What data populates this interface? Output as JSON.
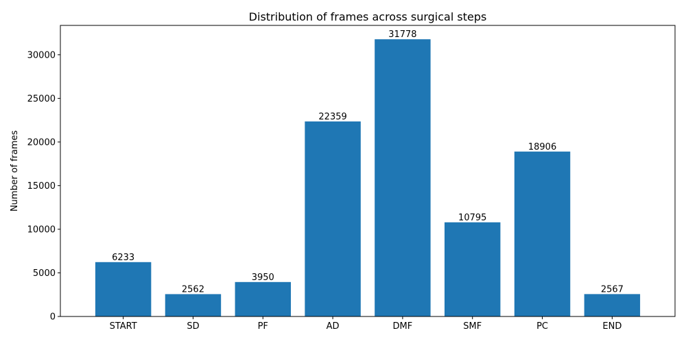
{
  "chart_data": {
    "type": "bar",
    "title": "Distribution of frames across surgical steps",
    "xlabel": "",
    "ylabel": "Number of frames",
    "categories": [
      "START",
      "SD",
      "PF",
      "AD",
      "DMF",
      "SMF",
      "PC",
      "END"
    ],
    "values": [
      6233,
      2562,
      3950,
      22359,
      31778,
      10795,
      18906,
      2567
    ],
    "data_labels": [
      "6233",
      "2562",
      "3950",
      "22359",
      "31778",
      "10795",
      "18906",
      "2567"
    ],
    "ylim": [
      0,
      33367
    ],
    "yticks": [
      0,
      5000,
      10000,
      15000,
      20000,
      25000,
      30000
    ],
    "ytick_labels": [
      "0",
      "5000",
      "10000",
      "15000",
      "20000",
      "25000",
      "30000"
    ],
    "bar_color": "#1f77b4",
    "grid": false,
    "legend": "none"
  }
}
